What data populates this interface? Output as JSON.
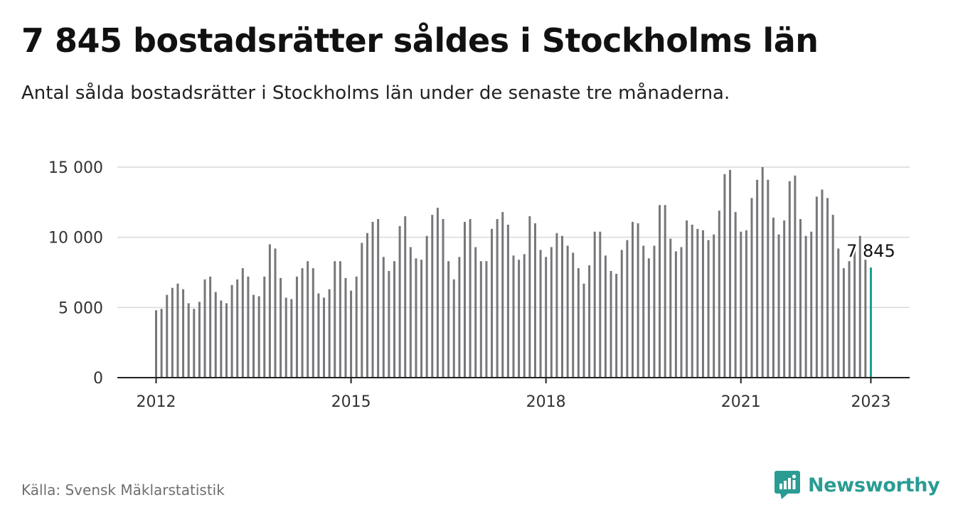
{
  "header": {
    "title": "7 845 bostadsrätter såldes i Stockholms län",
    "subtitle": "Antal sålda bostadsrätter i Stockholms län under de senaste tre månaderna."
  },
  "footer": {
    "source": "Källa: Svensk Mäklarstatistik",
    "brand": "Newsworthy",
    "brand_icon": "bar-chart-speech-bubble-icon"
  },
  "colors": {
    "bar": "#77767a",
    "highlight": "#1a9e94",
    "brand": "#2a9c93",
    "grid": "#d9d9d9",
    "axis": "#222222"
  },
  "chart_data": {
    "type": "bar",
    "x_start": "2012-01",
    "x_end": "2023-01",
    "xtick_labels": [
      "2012",
      "2015",
      "2018",
      "2021",
      "2023"
    ],
    "ytick_values": [
      0,
      5000,
      10000,
      15000
    ],
    "ytick_labels": [
      "0",
      "5 000",
      "10 000",
      "15 000"
    ],
    "ylim": [
      0,
      15000
    ],
    "grid": "horizontal",
    "highlight_label": "7 845",
    "values": [
      4800,
      4900,
      5900,
      6400,
      6700,
      6300,
      5300,
      4900,
      5400,
      7000,
      7200,
      6100,
      5500,
      5300,
      6600,
      7000,
      7800,
      7200,
      5900,
      5800,
      7200,
      9500,
      9200,
      7100,
      5700,
      5600,
      7200,
      7800,
      8300,
      7800,
      6000,
      5700,
      6300,
      8300,
      8300,
      7100,
      6200,
      7200,
      9600,
      10300,
      11100,
      11300,
      8600,
      7600,
      8300,
      10800,
      11500,
      9300,
      8500,
      8400,
      10100,
      11600,
      12100,
      11300,
      8300,
      7000,
      8600,
      11100,
      11300,
      9300,
      8300,
      8300,
      10600,
      11300,
      11800,
      10900,
      8700,
      8400,
      8800,
      11500,
      11000,
      9100,
      8600,
      9300,
      10300,
      10100,
      9400,
      8900,
      7800,
      6700,
      8000,
      10400,
      10400,
      8700,
      7600,
      7400,
      9100,
      9800,
      11100,
      11000,
      9400,
      8500,
      9400,
      12300,
      12300,
      9900,
      9000,
      9300,
      11200,
      10900,
      10600,
      10500,
      9800,
      10200,
      11900,
      14500,
      14800,
      11800,
      10400,
      10500,
      12800,
      14100,
      15000,
      14100,
      11400,
      10200,
      11200,
      14000,
      14400,
      11300,
      10100,
      10400,
      12900,
      13400,
      12800,
      11600,
      9200,
      7800,
      8300,
      9200,
      10100,
      8400,
      7845
    ]
  }
}
